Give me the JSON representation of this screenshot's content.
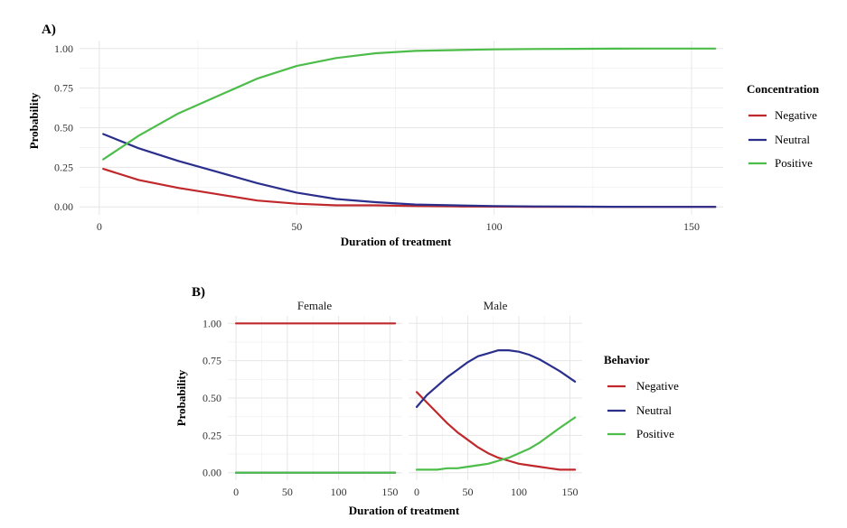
{
  "colors": {
    "Negative": "#c0282b",
    "Neutral": "#2b2f8c",
    "Positive": "#4dbd4a"
  },
  "chart_data": [
    {
      "id": "A",
      "panel_label": "A)",
      "type": "line",
      "title": "",
      "xlabel": "Duration of treatment",
      "ylabel": "Probability",
      "xlim": [
        -5,
        158
      ],
      "ylim": [
        -0.05,
        1.05
      ],
      "x_ticks": [
        0,
        50,
        100,
        150
      ],
      "x_tick_labels": [
        "0",
        "50",
        "100",
        "150"
      ],
      "y_ticks": [
        0,
        0.25,
        0.5,
        0.75,
        1.0
      ],
      "y_tick_labels": [
        "0.00",
        "0.25",
        "0.50",
        "0.75",
        "1.00"
      ],
      "grid": true,
      "legend": {
        "title": "Concentration",
        "position": "right"
      },
      "x": [
        1,
        10,
        20,
        30,
        40,
        50,
        60,
        70,
        80,
        90,
        100,
        110,
        120,
        130,
        140,
        150,
        156
      ],
      "series": [
        {
          "name": "Negative",
          "values": [
            0.24,
            0.17,
            0.12,
            0.08,
            0.04,
            0.02,
            0.01,
            0.01,
            0.005,
            0.003,
            0.002,
            0.001,
            0.001,
            0.0,
            0.0,
            0.0,
            0.0
          ]
        },
        {
          "name": "Neutral",
          "values": [
            0.46,
            0.37,
            0.29,
            0.22,
            0.15,
            0.09,
            0.05,
            0.03,
            0.015,
            0.01,
            0.005,
            0.003,
            0.002,
            0.001,
            0.0,
            0.0,
            0.0
          ]
        },
        {
          "name": "Positive",
          "values": [
            0.3,
            0.45,
            0.59,
            0.7,
            0.81,
            0.89,
            0.94,
            0.97,
            0.985,
            0.99,
            0.995,
            0.997,
            0.998,
            0.999,
            1.0,
            1.0,
            1.0
          ]
        }
      ]
    },
    {
      "id": "B",
      "panel_label": "B)",
      "type": "line",
      "title": "",
      "xlabel": "Duration of treatment",
      "ylabel": "Probability",
      "xlim": [
        -8,
        162
      ],
      "ylim": [
        -0.05,
        1.05
      ],
      "x_ticks": [
        0,
        50,
        100,
        150
      ],
      "x_tick_labels": [
        "0",
        "50",
        "100",
        "150"
      ],
      "y_ticks": [
        0,
        0.25,
        0.5,
        0.75,
        1.0
      ],
      "y_tick_labels": [
        "0.00",
        "0.25",
        "0.50",
        "0.75",
        "1.00"
      ],
      "grid": true,
      "legend": {
        "title": "Behavior",
        "position": "right"
      },
      "facets": [
        {
          "label": "Female",
          "x": [
            0,
            155
          ],
          "series": [
            {
              "name": "Negative",
              "values": [
                1.0,
                1.0
              ]
            },
            {
              "name": "Neutral",
              "values": [
                0.0,
                0.0
              ]
            },
            {
              "name": "Positive",
              "values": [
                0.0,
                0.0
              ]
            }
          ]
        },
        {
          "label": "Male",
          "x": [
            0,
            10,
            20,
            30,
            40,
            50,
            60,
            70,
            80,
            90,
            100,
            110,
            120,
            130,
            140,
            155
          ],
          "series": [
            {
              "name": "Negative",
              "values": [
                0.54,
                0.47,
                0.4,
                0.33,
                0.27,
                0.22,
                0.17,
                0.13,
                0.1,
                0.08,
                0.06,
                0.05,
                0.04,
                0.03,
                0.02,
                0.02
              ]
            },
            {
              "name": "Neutral",
              "values": [
                0.44,
                0.52,
                0.58,
                0.64,
                0.69,
                0.74,
                0.78,
                0.8,
                0.82,
                0.82,
                0.81,
                0.79,
                0.76,
                0.72,
                0.68,
                0.61
              ]
            },
            {
              "name": "Positive",
              "values": [
                0.02,
                0.02,
                0.02,
                0.03,
                0.03,
                0.04,
                0.05,
                0.06,
                0.08,
                0.1,
                0.13,
                0.16,
                0.2,
                0.25,
                0.3,
                0.37
              ]
            }
          ]
        }
      ]
    }
  ]
}
